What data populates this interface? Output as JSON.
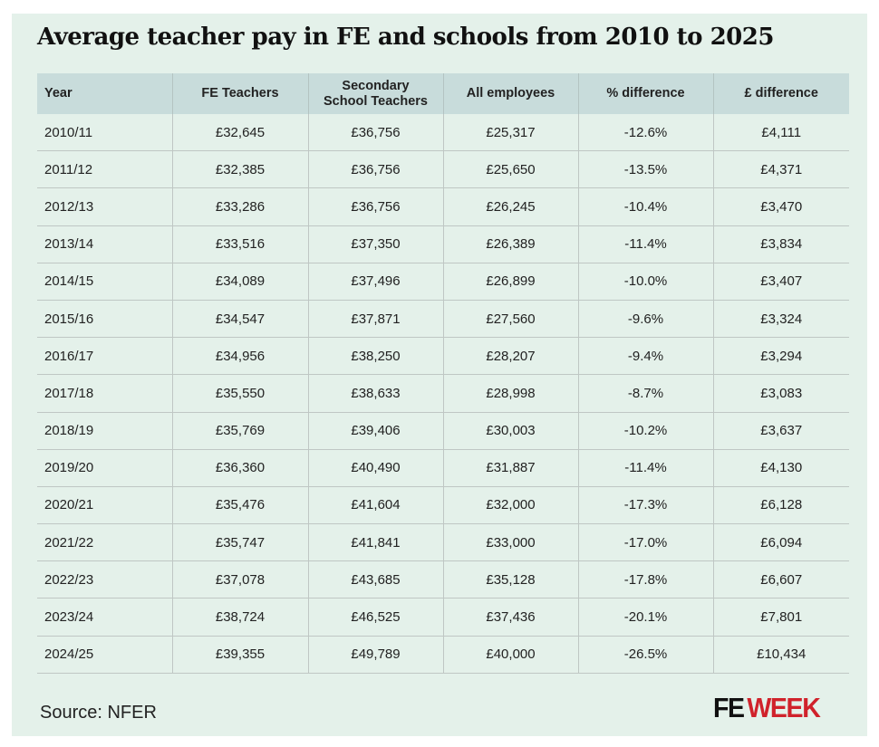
{
  "title": "Average teacher pay in FE and schools from 2010 to 2025",
  "table": {
    "headers": [
      "Year",
      "FE Teachers",
      "Secondary School Teachers",
      "All employees",
      "% difference",
      "£ difference"
    ],
    "rows": [
      [
        "2010/11",
        "£32,645",
        "£36,756",
        "£25,317",
        "-12.6%",
        "£4,111"
      ],
      [
        "2011/12",
        "£32,385",
        "£36,756",
        "£25,650",
        "-13.5%",
        "£4,371"
      ],
      [
        "2012/13",
        "£33,286",
        "£36,756",
        "£26,245",
        "-10.4%",
        "£3,470"
      ],
      [
        "2013/14",
        "£33,516",
        "£37,350",
        "£26,389",
        "-11.4%",
        "£3,834"
      ],
      [
        "2014/15",
        "£34,089",
        "£37,496",
        "£26,899",
        "-10.0%",
        "£3,407"
      ],
      [
        "2015/16",
        "£34,547",
        "£37,871",
        "£27,560",
        "-9.6%",
        "£3,324"
      ],
      [
        "2016/17",
        "£34,956",
        "£38,250",
        "£28,207",
        "-9.4%",
        "£3,294"
      ],
      [
        "2017/18",
        "£35,550",
        "£38,633",
        "£28,998",
        "-8.7%",
        "£3,083"
      ],
      [
        "2018/19",
        "£35,769",
        "£39,406",
        "£30,003",
        "-10.2%",
        "£3,637"
      ],
      [
        "2019/20",
        "£36,360",
        "£40,490",
        "£31,887",
        "-11.4%",
        "£4,130"
      ],
      [
        "2020/21",
        "£35,476",
        "£41,604",
        "£32,000",
        "-17.3%",
        "£6,128"
      ],
      [
        "2021/22",
        "£35,747",
        "£41,841",
        "£33,000",
        "-17.0%",
        "£6,094"
      ],
      [
        "2022/23",
        "£37,078",
        "£43,685",
        "£35,128",
        "-17.8%",
        "£6,607"
      ],
      [
        "2023/24",
        "£38,724",
        "£46,525",
        "£37,436",
        "-20.1%",
        "£7,801"
      ],
      [
        "2024/25",
        "£39,355",
        "£49,789",
        "£40,000",
        "-26.5%",
        "£10,434"
      ]
    ]
  },
  "source": "Source: NFER",
  "logo": {
    "part1": "FE",
    "part2": "WEEK"
  },
  "colors": {
    "background": "#e4f1ea",
    "header": "#c8dcdb",
    "brand_red": "#d0222b"
  }
}
